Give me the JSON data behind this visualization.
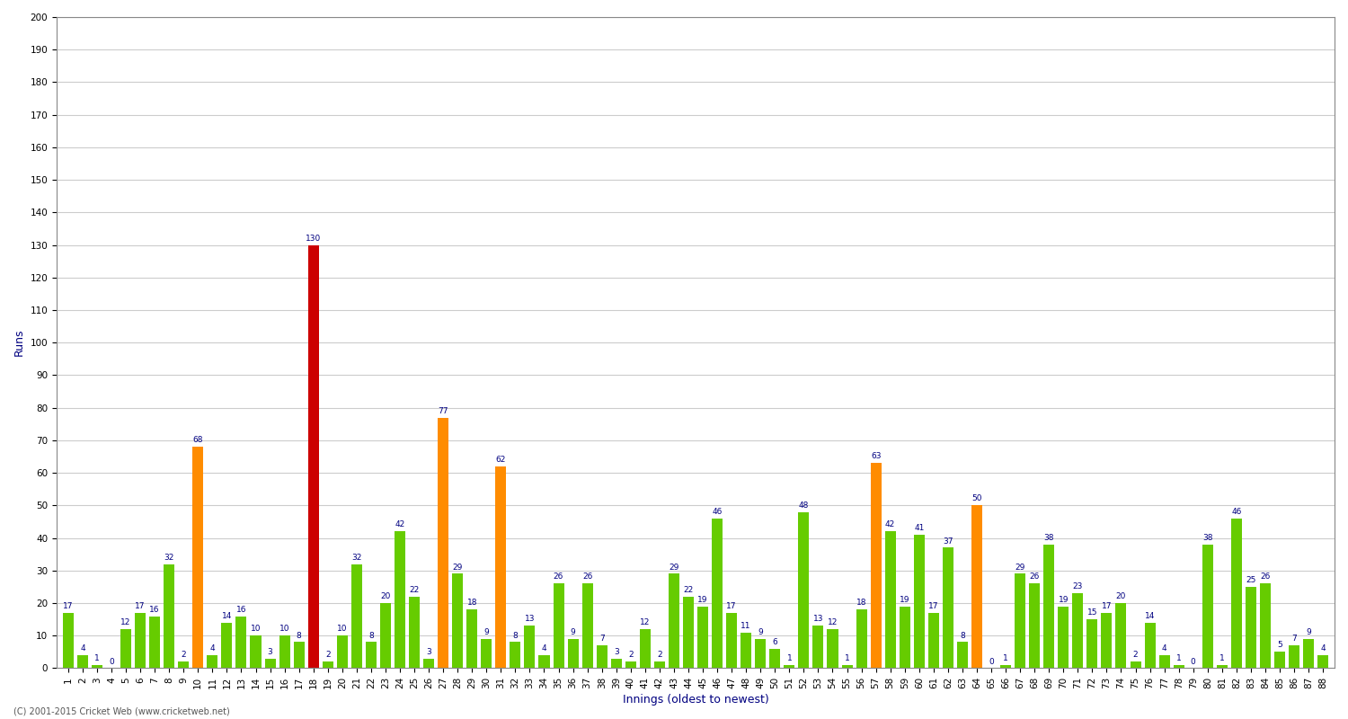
{
  "xlabel": "Innings (oldest to newest)",
  "ylabel": "Runs",
  "background_color": "#ffffff",
  "grid_color": "#cccccc",
  "values": [
    17,
    4,
    1,
    0,
    12,
    17,
    16,
    32,
    2,
    68,
    4,
    14,
    16,
    10,
    3,
    10,
    8,
    130,
    2,
    10,
    32,
    8,
    20,
    42,
    22,
    3,
    77,
    29,
    18,
    9,
    62,
    8,
    13,
    4,
    26,
    9,
    26,
    7,
    3,
    2,
    12,
    2,
    29,
    22,
    19,
    46,
    17,
    11,
    9,
    6,
    1,
    48,
    13,
    12,
    1,
    18,
    63,
    42,
    19,
    41,
    17,
    37,
    8,
    50,
    0,
    1,
    29,
    26,
    38,
    19,
    23,
    15,
    17,
    20,
    2,
    14,
    4,
    1,
    0,
    38,
    1,
    46,
    25,
    26,
    5,
    7,
    9,
    4
  ],
  "colors": [
    "#66cc00",
    "#66cc00",
    "#66cc00",
    "#66cc00",
    "#66cc00",
    "#66cc00",
    "#66cc00",
    "#66cc00",
    "#66cc00",
    "#ff8c00",
    "#66cc00",
    "#66cc00",
    "#66cc00",
    "#66cc00",
    "#66cc00",
    "#66cc00",
    "#66cc00",
    "#cc0000",
    "#66cc00",
    "#66cc00",
    "#66cc00",
    "#66cc00",
    "#66cc00",
    "#66cc00",
    "#66cc00",
    "#66cc00",
    "#ff8c00",
    "#66cc00",
    "#66cc00",
    "#66cc00",
    "#ff8c00",
    "#66cc00",
    "#66cc00",
    "#66cc00",
    "#66cc00",
    "#66cc00",
    "#66cc00",
    "#66cc00",
    "#66cc00",
    "#66cc00",
    "#66cc00",
    "#66cc00",
    "#66cc00",
    "#66cc00",
    "#66cc00",
    "#66cc00",
    "#66cc00",
    "#66cc00",
    "#66cc00",
    "#66cc00",
    "#66cc00",
    "#66cc00",
    "#66cc00",
    "#66cc00",
    "#66cc00",
    "#66cc00",
    "#ff8c00",
    "#66cc00",
    "#66cc00",
    "#66cc00",
    "#66cc00",
    "#66cc00",
    "#66cc00",
    "#ff8c00",
    "#66cc00",
    "#66cc00",
    "#66cc00",
    "#66cc00",
    "#66cc00",
    "#66cc00",
    "#66cc00",
    "#66cc00",
    "#66cc00",
    "#66cc00",
    "#66cc00",
    "#66cc00",
    "#66cc00",
    "#66cc00",
    "#66cc00",
    "#66cc00",
    "#66cc00",
    "#66cc00",
    "#66cc00",
    "#66cc00",
    "#66cc00",
    "#66cc00",
    "#66cc00",
    "#66cc00"
  ],
  "labels": [
    "1",
    "2",
    "3",
    "4",
    "5",
    "6",
    "7",
    "8",
    "9",
    "10",
    "11",
    "12",
    "13",
    "14",
    "15",
    "16",
    "17",
    "18",
    "19",
    "20",
    "21",
    "22",
    "23",
    "24",
    "25",
    "26",
    "27",
    "28",
    "29",
    "30",
    "31",
    "32",
    "33",
    "34",
    "35",
    "36",
    "37",
    "38",
    "39",
    "40",
    "41",
    "42",
    "43",
    "44",
    "45",
    "46",
    "47",
    "48",
    "49",
    "50",
    "51",
    "52",
    "53",
    "54",
    "55",
    "56",
    "57",
    "58",
    "59",
    "60",
    "61",
    "62",
    "63",
    "64",
    "65",
    "66",
    "67",
    "68",
    "69",
    "70",
    "71",
    "72",
    "73",
    "74",
    "75",
    "76",
    "77",
    "78",
    "79",
    "80",
    "81",
    "82",
    "83",
    "84",
    "85",
    "86",
    "87",
    "88"
  ],
  "ylim": [
    0,
    200
  ],
  "yticks": [
    0,
    10,
    20,
    30,
    40,
    50,
    60,
    70,
    80,
    90,
    100,
    110,
    120,
    130,
    140,
    150,
    160,
    170,
    180,
    190,
    200
  ],
  "value_fontsize": 6.5,
  "value_color": "#000080",
  "tick_fontsize": 7.5,
  "label_fontsize": 9,
  "copyright_text": "(C) 2001-2015 Cricket Web (www.cricketweb.net)"
}
